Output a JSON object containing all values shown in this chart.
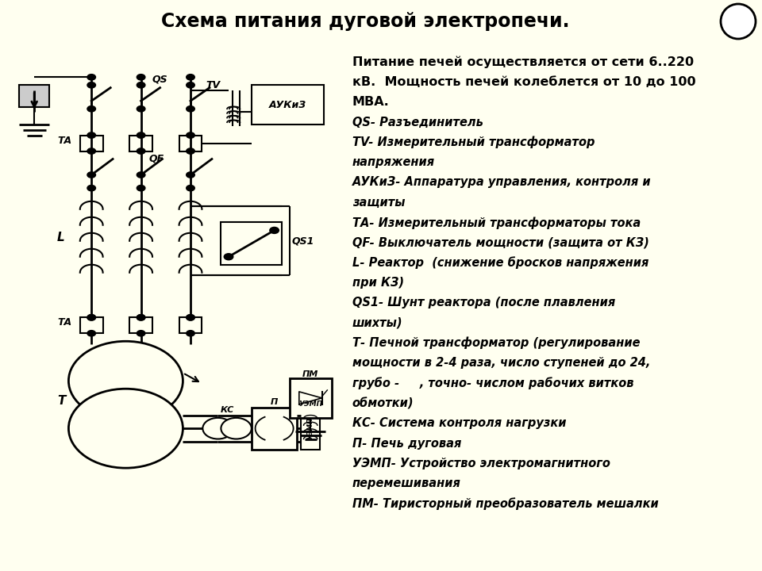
{
  "title": "Схема питания дуговой электропечи.",
  "title_bg": "#b8d4e0",
  "left_bg": "#fffff0",
  "right_bg": "#ccd988",
  "fig_bg": "#fffff0",
  "border_color": "#888888",
  "right_text": [
    [
      "bold",
      "Питание печей осуществляется от сети 6..220"
    ],
    [
      "bold",
      "кВ.  Мощность печей колеблется от 10 до 100"
    ],
    [
      "bold",
      "МВА."
    ],
    [
      "italic_bold",
      "QS- Разъединитель"
    ],
    [
      "italic_bold",
      "TV- Измерительный трансформатор"
    ],
    [
      "italic_bold",
      "напряжения"
    ],
    [
      "italic_bold",
      "АУКиЗ- Аппаратура управления, контроля и"
    ],
    [
      "italic_bold",
      "защиты"
    ],
    [
      "italic_bold",
      "ТА- Измерительный трансформаторы тока"
    ],
    [
      "italic_bold",
      "QF- Выключатель мощности (защита от КЗ)"
    ],
    [
      "italic_bold",
      "L- Реактор  (снижение бросков напряжения"
    ],
    [
      "italic_bold",
      "при КЗ)"
    ],
    [
      "italic_bold",
      "QS1- Шунт реактора (после плавления"
    ],
    [
      "italic_bold",
      "шихты)"
    ],
    [
      "italic_bold",
      "Т- Печной трансформатор (регулирование"
    ],
    [
      "italic_bold",
      "мощности в 2-4 раза, число ступеней до 24,"
    ],
    [
      "italic_bold",
      "грубо -     , точно- числом рабочих витков"
    ],
    [
      "italic_bold",
      "обмотки)"
    ],
    [
      "italic_bold",
      "КС- Система контроля нагрузки"
    ],
    [
      "italic_bold",
      "П- Печь дуговая"
    ],
    [
      "italic_bold",
      "УЭМП- Устройство электромагнитного"
    ],
    [
      "italic_bold",
      "перемешивания"
    ],
    [
      "italic_bold",
      "ПМ- Тиристорный преобразователь мешалки"
    ]
  ]
}
